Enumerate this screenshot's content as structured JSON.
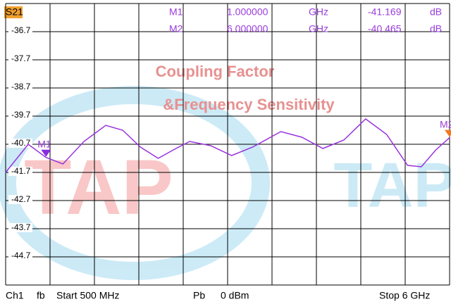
{
  "chart_data": {
    "type": "line",
    "trace_label": "S21",
    "annotations": [
      "Coupling Factor",
      "&Frequency Sensitivity"
    ],
    "watermark": [
      "TAP",
      "TAP"
    ],
    "markers": [
      {
        "name": "M1",
        "x": 1,
        "x_label": "1.000000",
        "x_unit": "GHz",
        "value": -41.169,
        "unit": "dB"
      },
      {
        "name": "M2",
        "x": 6,
        "x_label": "6.000000",
        "x_unit": "GHz",
        "value": -40.465,
        "unit": "dB"
      }
    ],
    "x": [
      0.5,
      0.78,
      1.0,
      1.21,
      1.47,
      1.74,
      1.95,
      2.17,
      2.39,
      2.61,
      2.78,
      3.04,
      3.3,
      3.56,
      3.91,
      4.17,
      4.43,
      4.69,
      4.96,
      5.22,
      5.48,
      5.65,
      5.83,
      6.0
    ],
    "series": [
      {
        "name": "S21",
        "color": "#9933dd",
        "values": [
          -41.7,
          -40.7,
          -41.169,
          -41.4,
          -40.6,
          -40.03,
          -40.2,
          -40.8,
          -41.2,
          -40.85,
          -40.6,
          -40.75,
          -41.1,
          -40.8,
          -40.25,
          -40.45,
          -40.85,
          -40.55,
          -39.8,
          -40.35,
          -41.45,
          -41.5,
          -40.9,
          -40.465
        ]
      }
    ],
    "xlim": [
      0.5,
      6
    ],
    "ylim": [
      -45.7,
      -35.7
    ],
    "yticks": [
      -36.7,
      -37.7,
      -38.7,
      -39.7,
      -40.7,
      -41.7,
      -42.7,
      -43.7,
      -44.7
    ],
    "grid": true,
    "footer": [
      "Ch1",
      "fb",
      "Start 500 MHz",
      "Pb",
      "0 dBm",
      "Stop 6 GHz"
    ]
  }
}
